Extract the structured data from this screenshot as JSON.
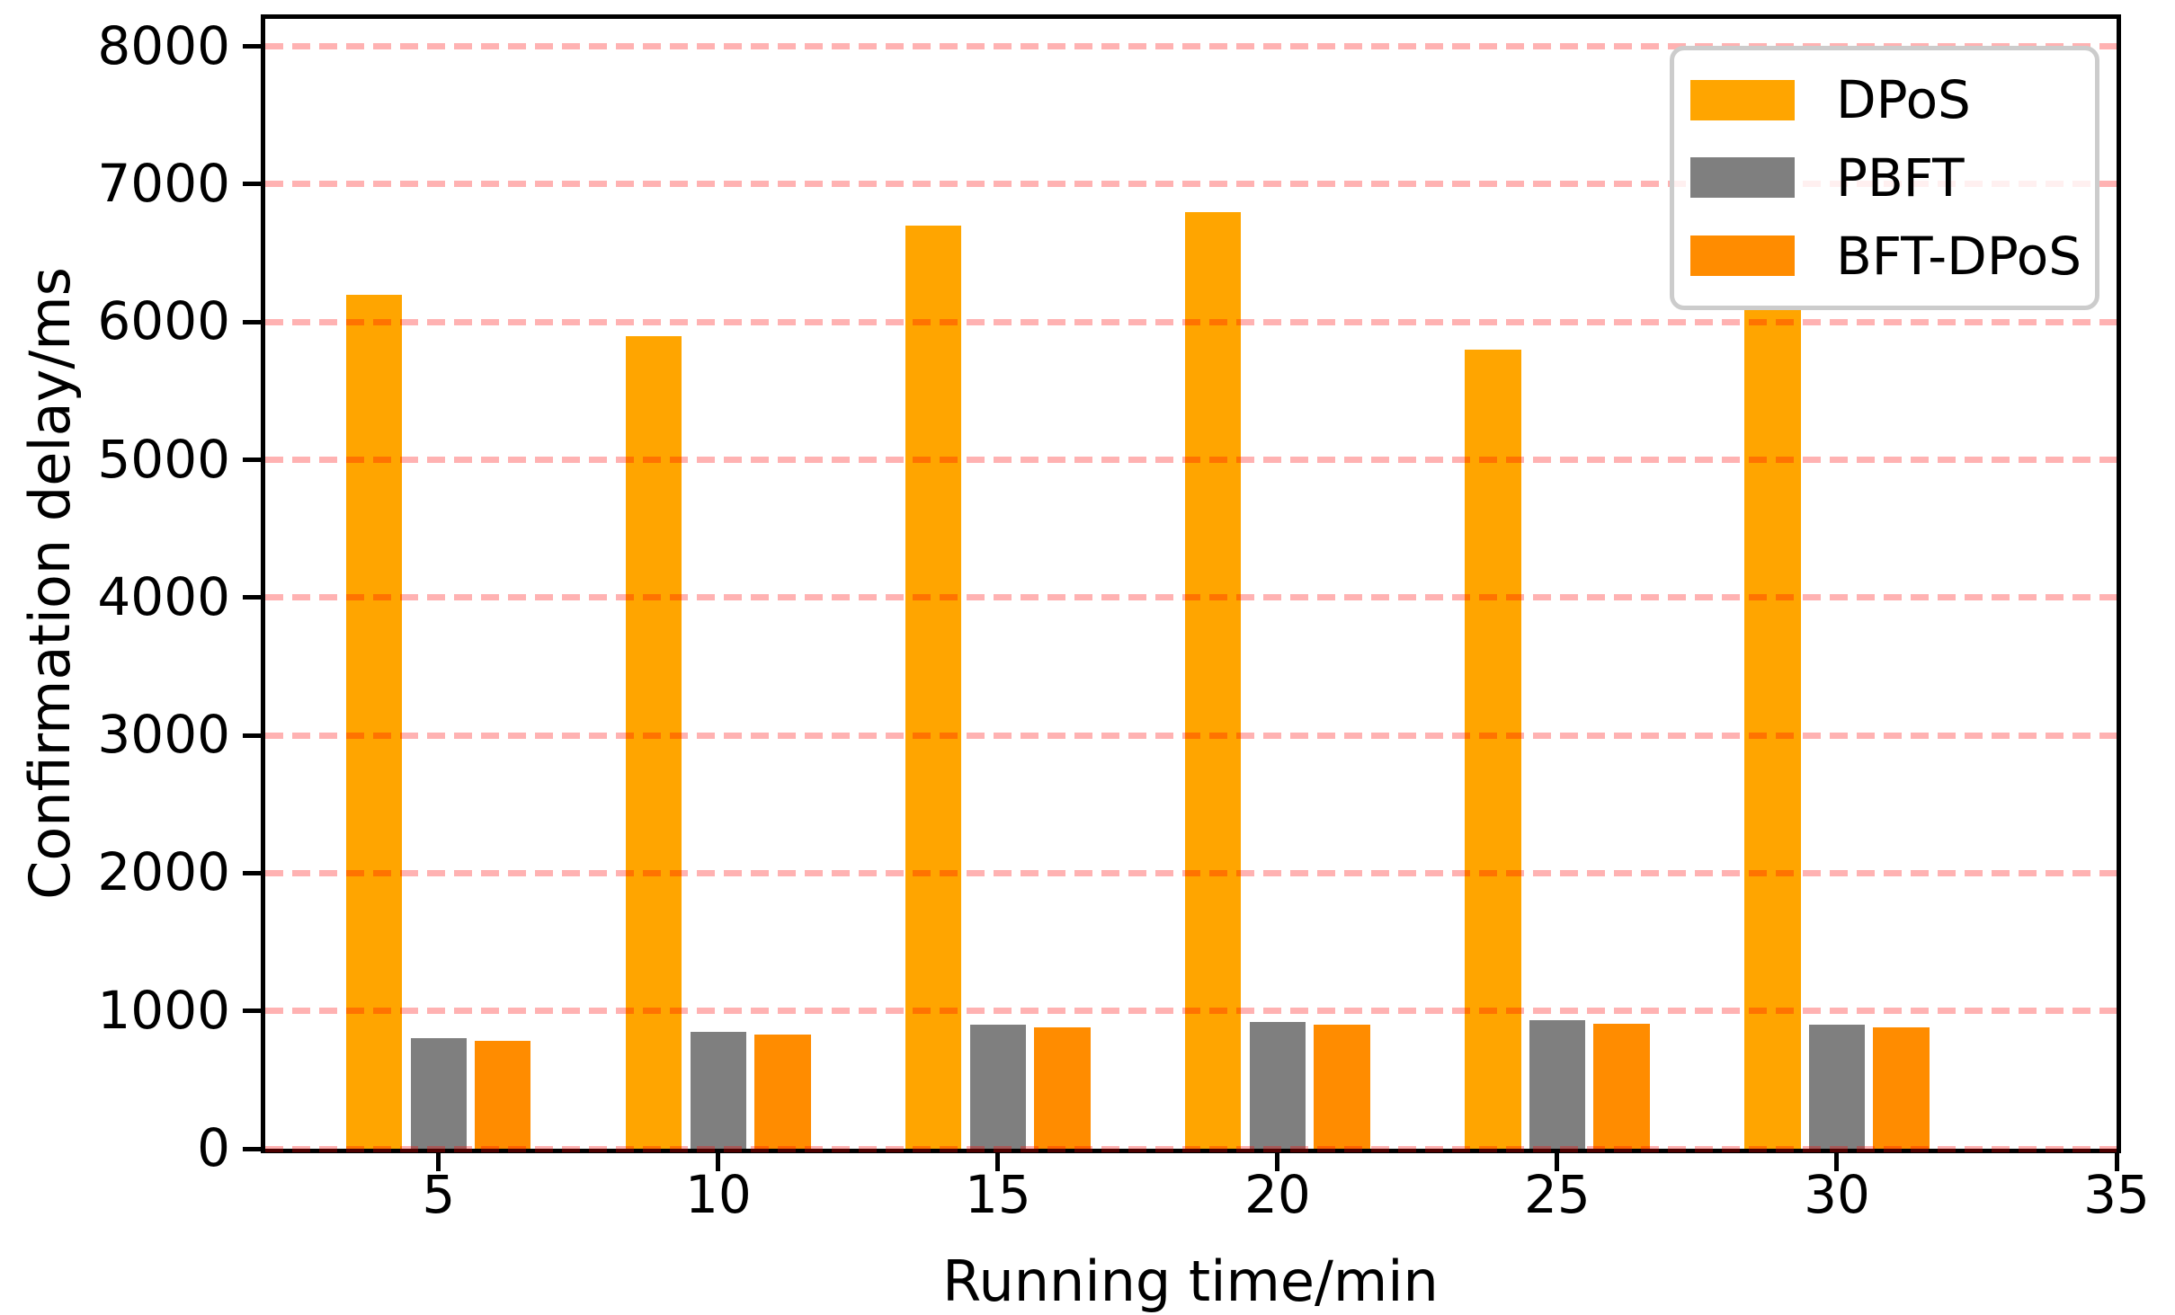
{
  "figure": {
    "background": "#ffffff"
  },
  "chart_data": {
    "type": "bar",
    "title": "",
    "xlabel": "Running time/min",
    "ylabel": "Confirmation delay/ms",
    "categories": [
      5,
      10,
      15,
      20,
      25,
      30
    ],
    "series": [
      {
        "name": "DPoS",
        "color": "#FFA500",
        "values": [
          6200,
          5900,
          6700,
          6800,
          5800,
          6100
        ]
      },
      {
        "name": "PBFT",
        "color": "#7F7F7F",
        "values": [
          800,
          850,
          900,
          920,
          930,
          900
        ]
      },
      {
        "name": "BFT-DPoS",
        "color": "#FF8C00",
        "values": [
          780,
          830,
          880,
          900,
          910,
          880
        ]
      }
    ],
    "xticks": [
      5,
      10,
      15,
      20,
      25,
      30,
      35
    ],
    "yticks": [
      0,
      1000,
      2000,
      3000,
      4000,
      5000,
      6000,
      7000,
      8000
    ],
    "xlim": [
      1.9,
      35.0
    ],
    "ylim": [
      0,
      8200
    ],
    "grid": {
      "axis": "y",
      "style": "dashed",
      "color": "rgba(255,0,0,0.30)",
      "on": true
    },
    "legend": {
      "position": "upper right",
      "border_color": "#cccccc",
      "background": "rgba(255,255,255,0.8)"
    },
    "bar_width_units": 1.0,
    "group_offsets_units": [
      -1.15,
      0,
      1.15
    ],
    "spine_color": "#000000",
    "tick_color": "#000000"
  }
}
